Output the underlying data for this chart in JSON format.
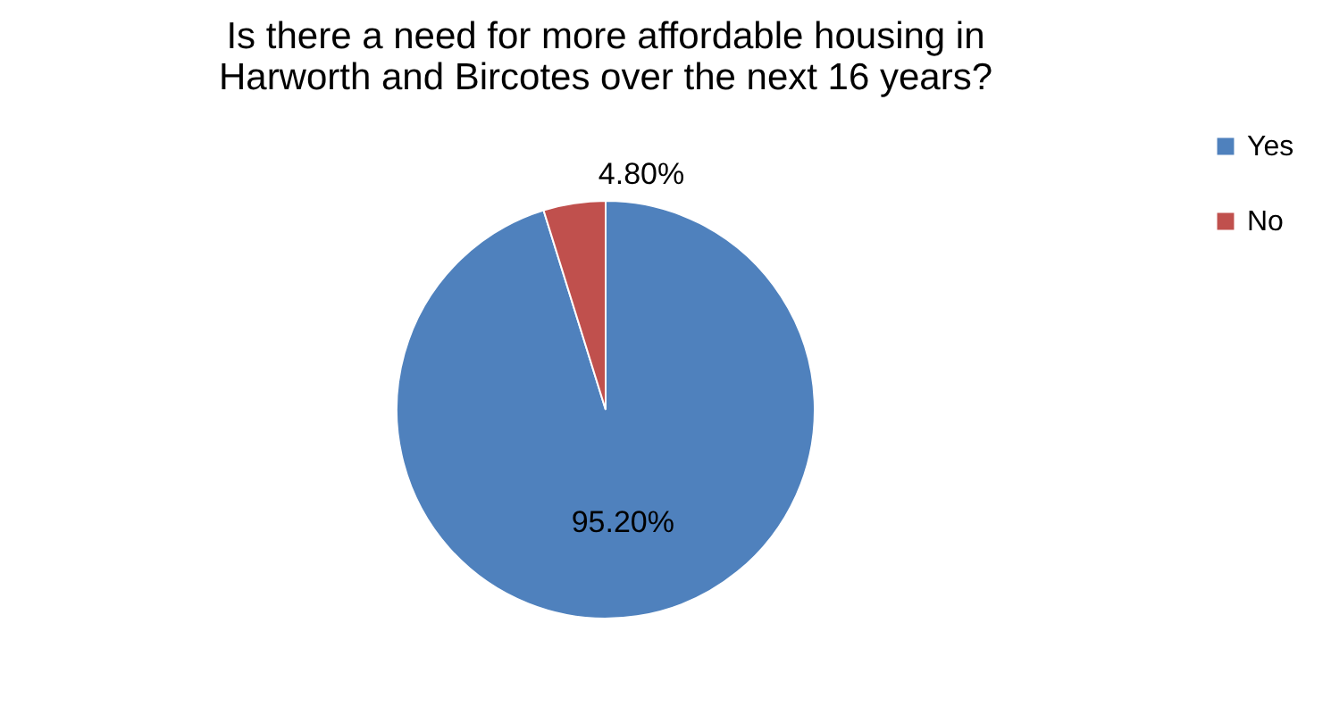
{
  "chart_data": {
    "type": "pie",
    "title": "Is there a need for more affordable housing in Harworth and Bircotes over the next 16 years?",
    "categories": [
      "Yes",
      "No"
    ],
    "values": [
      95.2,
      4.8
    ],
    "colors": [
      "#4f81bd",
      "#c0504d"
    ],
    "value_labels": [
      "95.20%",
      "4.80%"
    ],
    "legend": "right"
  }
}
